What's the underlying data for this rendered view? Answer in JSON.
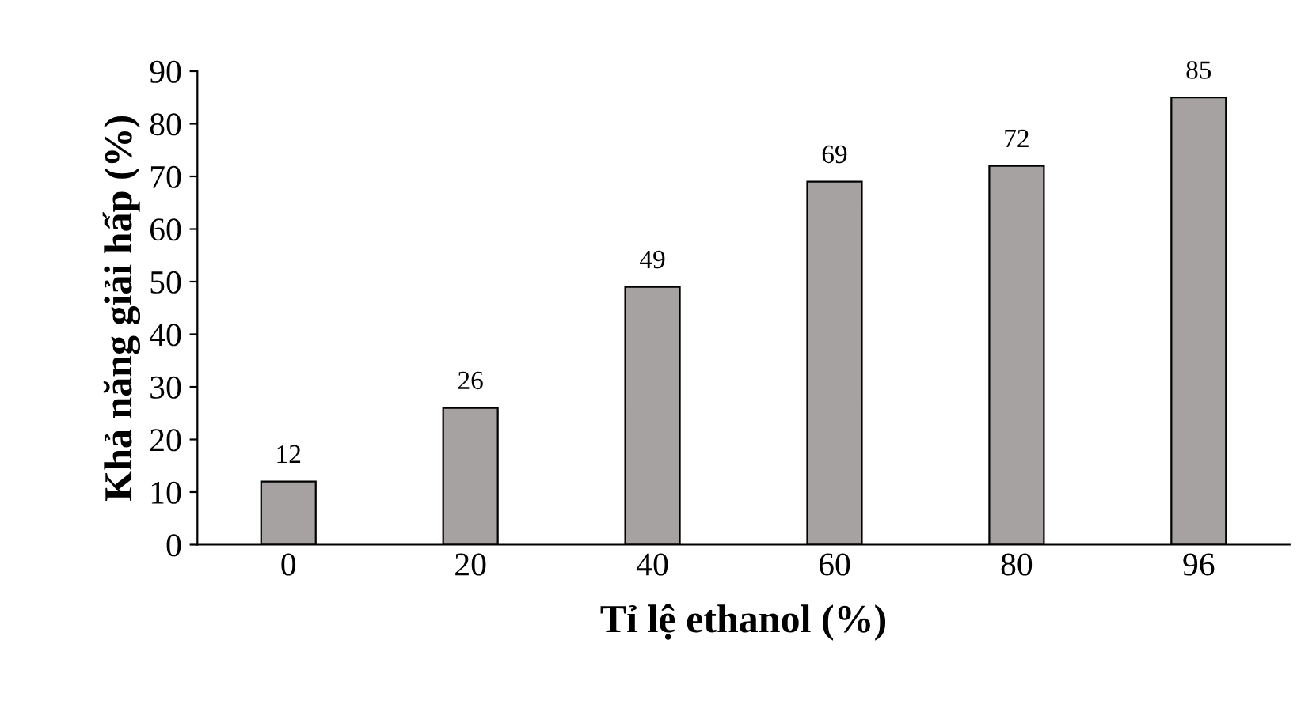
{
  "chart_data": {
    "type": "bar",
    "xlabel": "Tỉ lệ ethanol (%)",
    "ylabel": "Khả năng giải hấp (%)",
    "categories": [
      "0",
      "20",
      "40",
      "60",
      "80",
      "96"
    ],
    "values": [
      12,
      26,
      49,
      69,
      72,
      85
    ],
    "color": "#a6a2a2",
    "ylim": [
      0,
      90
    ],
    "yticks": [
      0,
      10,
      20,
      30,
      40,
      50,
      60,
      70,
      80,
      90
    ],
    "grid": false,
    "data_labels": true
  }
}
